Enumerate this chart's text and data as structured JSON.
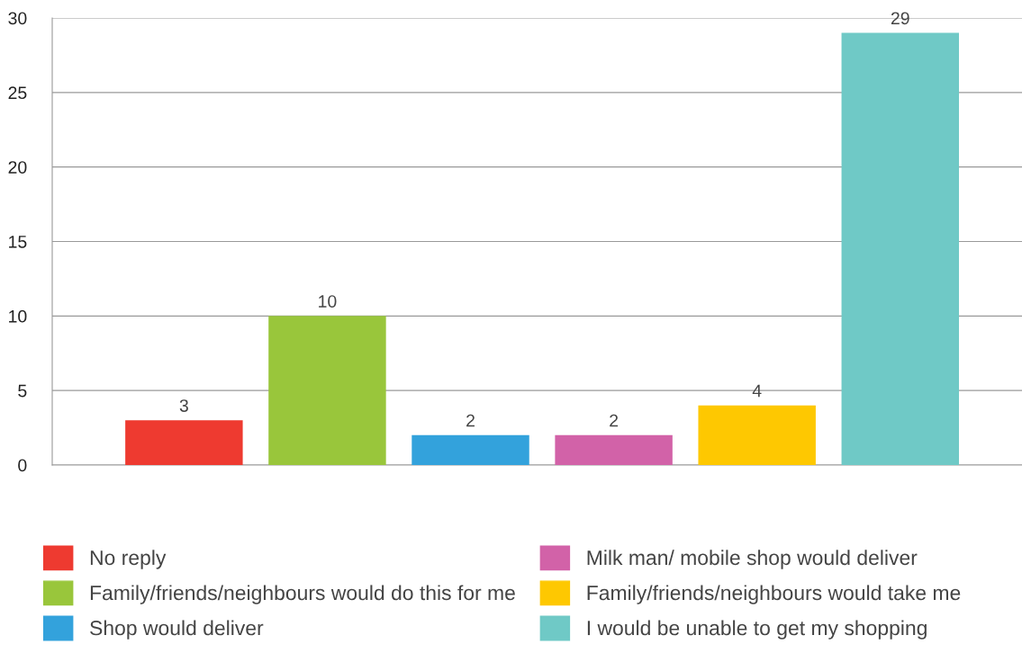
{
  "chart_data": {
    "type": "bar",
    "categories": [
      null,
      null,
      null,
      null,
      null,
      null
    ],
    "series": [
      {
        "name": "No reply",
        "color": "#ee3a30",
        "values": [
          3,
          null,
          null,
          null,
          null,
          null
        ]
      },
      {
        "name": "Family/friends/neighbours would do this for me",
        "color": "#99c63b",
        "values": [
          null,
          10,
          null,
          null,
          null,
          null
        ]
      },
      {
        "name": "Shop would deliver",
        "color": "#33a2dc",
        "values": [
          null,
          null,
          2,
          null,
          null,
          null
        ]
      },
      {
        "name": "Milk man/ mobile shop would deliver",
        "color": "#d262a8",
        "values": [
          null,
          null,
          null,
          2,
          null,
          null
        ]
      },
      {
        "name": "Family/friends/neighbours would take me",
        "color": "#fec801",
        "values": [
          null,
          null,
          null,
          null,
          4,
          null
        ]
      },
      {
        "name": "I would be unable to get my shopping",
        "color": "#6fc9c6",
        "values": [
          null,
          null,
          null,
          null,
          null,
          29
        ]
      }
    ],
    "ylim": [
      0,
      30
    ],
    "yticks": [
      0,
      5,
      10,
      15,
      20,
      25,
      30
    ],
    "grid": "y",
    "legend": "bottom",
    "data_labels": true
  }
}
